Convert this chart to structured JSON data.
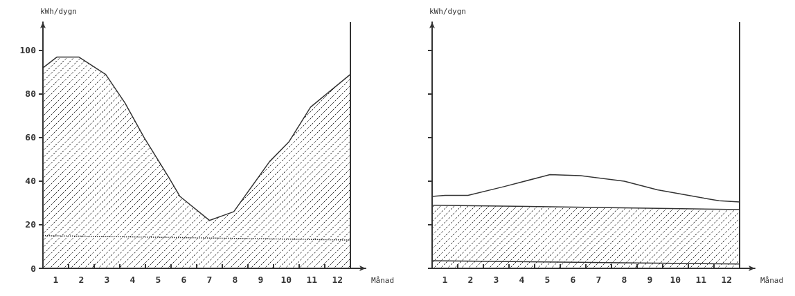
{
  "chart_data": [
    {
      "type": "area",
      "xlabel": "Månad",
      "ylabel": "kWh/dygn",
      "xlim": [
        0,
        12.6
      ],
      "ylim": [
        0,
        113
      ],
      "xticks": [
        {
          "value": 0,
          "label": null
        },
        {
          "value": 1,
          "label": null
        },
        {
          "value": 2,
          "label": null
        },
        {
          "value": 3,
          "label": null
        },
        {
          "value": 4,
          "label": null
        },
        {
          "value": 5,
          "label": null
        },
        {
          "value": 6,
          "label": null
        },
        {
          "value": 7,
          "label": null
        },
        {
          "value": 8,
          "label": null
        },
        {
          "value": 9,
          "label": null
        },
        {
          "value": 10,
          "label": null
        },
        {
          "value": 11,
          "label": null
        },
        {
          "value": 12,
          "label": null
        },
        {
          "value": 0.5,
          "label": "1"
        },
        {
          "value": 1.5,
          "label": "2"
        },
        {
          "value": 2.5,
          "label": "3"
        },
        {
          "value": 3.5,
          "label": "4"
        },
        {
          "value": 4.5,
          "label": "5"
        },
        {
          "value": 5.5,
          "label": "6"
        },
        {
          "value": 6.5,
          "label": "7"
        },
        {
          "value": 7.5,
          "label": "8"
        },
        {
          "value": 8.5,
          "label": "9"
        },
        {
          "value": 9.5,
          "label": "10"
        },
        {
          "value": 10.5,
          "label": "11"
        },
        {
          "value": 11.5,
          "label": "12"
        }
      ],
      "yticks": [
        0,
        20,
        40,
        60,
        80,
        100
      ],
      "series": [
        {
          "color": "#333333",
          "x": [
            0,
            0.55,
            1.4,
            2.45,
            3.2,
            3.95,
            4.9,
            5.35,
            6.5,
            7.45,
            8.85,
            9.6,
            10.45,
            12
          ],
          "values": [
            92,
            97,
            97,
            89,
            76,
            60,
            42,
            33,
            22,
            26,
            49,
            58,
            74,
            89
          ]
        },
        {
          "type": "line",
          "color": "#333333",
          "line_style": "dotted",
          "x": [
            0,
            12
          ],
          "values": [
            15,
            13
          ]
        }
      ],
      "ref_lines": [
        {
          "axis": "x",
          "value": 12,
          "color": "#333333"
        }
      ]
    },
    {
      "type": "area",
      "xlabel": "Månad",
      "ylabel": "kWh/dygn",
      "xlim": [
        0,
        12.6
      ],
      "ylim": [
        0,
        113
      ],
      "tick_labels": "x",
      "xticks": [
        {
          "value": 0,
          "label": null
        },
        {
          "value": 1,
          "label": null
        },
        {
          "value": 2,
          "label": null
        },
        {
          "value": 3,
          "label": null
        },
        {
          "value": 4,
          "label": null
        },
        {
          "value": 5,
          "label": null
        },
        {
          "value": 6,
          "label": null
        },
        {
          "value": 7,
          "label": null
        },
        {
          "value": 8,
          "label": null
        },
        {
          "value": 9,
          "label": null
        },
        {
          "value": 10,
          "label": null
        },
        {
          "value": 11,
          "label": null
        },
        {
          "value": 12,
          "label": null
        },
        {
          "value": 0.5,
          "label": "1"
        },
        {
          "value": 1.5,
          "label": "2"
        },
        {
          "value": 2.5,
          "label": "3"
        },
        {
          "value": 3.5,
          "label": "4"
        },
        {
          "value": 4.5,
          "label": "5"
        },
        {
          "value": 5.5,
          "label": "6"
        },
        {
          "value": 6.5,
          "label": "7"
        },
        {
          "value": 7.5,
          "label": "8"
        },
        {
          "value": 8.5,
          "label": "9"
        },
        {
          "value": 9.5,
          "label": "10"
        },
        {
          "value": 10.5,
          "label": "11"
        },
        {
          "value": 11.5,
          "label": "12"
        }
      ],
      "yticks": [
        {
          "value": 0,
          "label": null
        },
        {
          "value": 20,
          "label": null
        },
        {
          "value": 40,
          "label": null
        },
        {
          "value": 60,
          "label": null
        },
        {
          "value": 80,
          "label": null
        },
        {
          "value": 100,
          "label": null
        }
      ],
      "series": [
        {
          "color": "#333333",
          "x": [
            0,
            12
          ],
          "values": [
            29,
            27
          ]
        },
        {
          "type": "line",
          "color": "#333333",
          "x": [
            0,
            12
          ],
          "values": [
            3.5,
            2
          ]
        },
        {
          "type": "line",
          "color": "#333333",
          "x": [
            0,
            0.5,
            1.4,
            2.8,
            4.6,
            5.8,
            7.5,
            8.8,
            11.2,
            12
          ],
          "values": [
            33,
            33.5,
            33.5,
            37.5,
            43,
            42.5,
            40,
            36,
            31,
            30.5
          ]
        }
      ],
      "ref_lines": [
        {
          "axis": "x",
          "value": 12,
          "color": "#333333"
        }
      ]
    }
  ]
}
